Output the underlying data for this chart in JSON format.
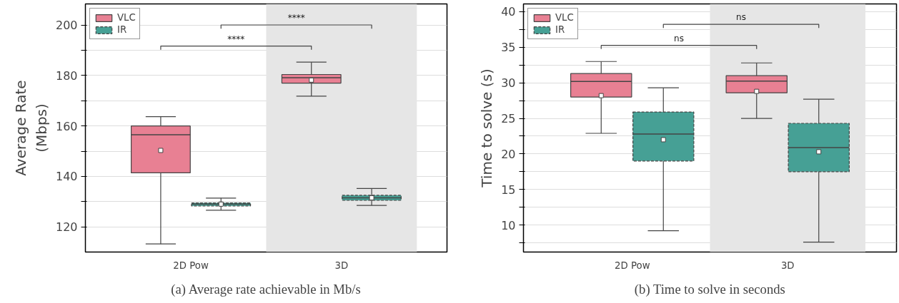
{
  "chart_data": [
    {
      "type": "box",
      "title": "(a) Average rate achievable in Mb/s",
      "ylabel": "Average Rate\n(Mbps)",
      "categories": [
        "2D Pow",
        "3D"
      ],
      "ylim": [
        110,
        208.4
      ],
      "yticks": [
        120,
        {
          "value": 130,
          "label": null
        },
        140,
        {
          "value": 150,
          "label": null
        },
        160,
        {
          "value": 170,
          "label": null
        },
        180,
        {
          "value": 190,
          "label": null
        },
        200
      ],
      "grid": "y",
      "legend": "top left",
      "marker": "square",
      "bands": [
        {
          "axis": "x",
          "from": "3D",
          "to": "3D",
          "color": "#e6e6e6"
        }
      ],
      "annotations": [
        "****",
        "****"
      ],
      "series": [
        {
          "name": "VLC",
          "color": "#e88093",
          "line_style": "solid",
          "boxes": [
            {
              "low": 113.2,
              "q1": 141.4,
              "median": 156.5,
              "q3": 160,
              "high": 163.7,
              "mean": 150.3
            },
            {
              "low": 171.8,
              "q1": 177,
              "median": 179.1,
              "q3": 180.4,
              "high": 185.3,
              "mean": 178.2
            }
          ]
        },
        {
          "name": "IR",
          "color": "#46a095",
          "line_style": "dashed",
          "boxes": [
            {
              "low": 126.6,
              "q1": 128.3,
              "median": 129,
              "q3": 129.5,
              "high": 131.4,
              "mean": 129
            },
            {
              "low": 128.5,
              "q1": 130.5,
              "median": 131.5,
              "q3": 132.5,
              "high": 135.2,
              "mean": 131.5
            }
          ]
        }
      ]
    },
    {
      "type": "box",
      "title": "(b) Time to solve in seconds",
      "ylabel": "Time to solve (s)",
      "categories": [
        "2D Pow",
        "3D"
      ],
      "ylim": [
        6.2,
        41.1
      ],
      "yticks": [
        {
          "value": 7.5,
          "label": null
        },
        10,
        {
          "value": 12.5,
          "label": null
        },
        15,
        {
          "value": 17.5,
          "label": null
        },
        20,
        {
          "value": 22.5,
          "label": null
        },
        25,
        {
          "value": 27.5,
          "label": null
        },
        30,
        {
          "value": 32.5,
          "label": null
        },
        35,
        {
          "value": 37.5,
          "label": null
        },
        40
      ],
      "grid": "y",
      "legend": "top left",
      "marker": "square",
      "bands": [
        {
          "axis": "x",
          "from": "3D",
          "to": "3D",
          "color": "#e6e6e6"
        }
      ],
      "annotations": [
        "ns",
        "ns"
      ],
      "series": [
        {
          "name": "VLC",
          "color": "#e88093",
          "line_style": "solid",
          "boxes": [
            {
              "low": 22.9,
              "q1": 28.0,
              "median": 30.2,
              "q3": 31.3,
              "high": 33.0,
              "mean": 28.2
            },
            {
              "low": 25.0,
              "q1": 28.6,
              "median": 30.25,
              "q3": 31.0,
              "high": 32.8,
              "mean": 28.8
            }
          ]
        },
        {
          "name": "IR",
          "color": "#46a095",
          "line_style": "dashed",
          "boxes": [
            {
              "low": 9.2,
              "q1": 19.0,
              "median": 22.8,
              "q3": 25.9,
              "high": 29.3,
              "mean": 22.0
            },
            {
              "low": 7.6,
              "q1": 17.5,
              "median": 20.9,
              "q3": 24.3,
              "high": 27.7,
              "mean": 20.3
            }
          ]
        }
      ]
    }
  ]
}
